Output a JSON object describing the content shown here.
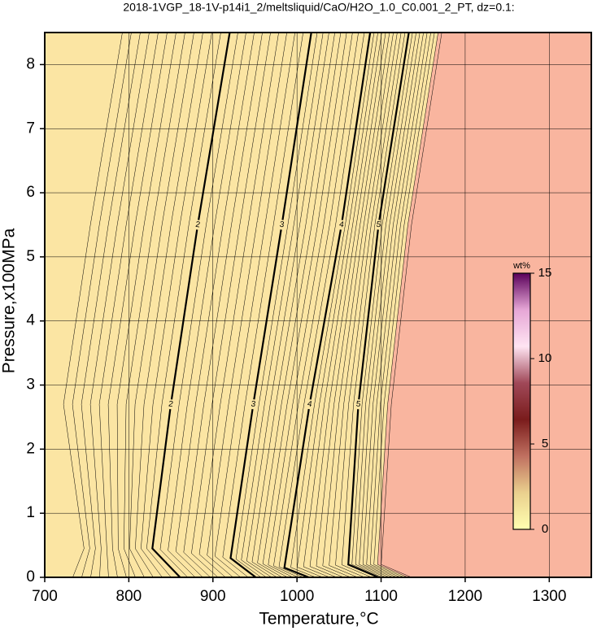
{
  "chart_data": {
    "type": "contour",
    "title": "2018-1VGP_18-1V-p14i1_2/meltsliquid/CaO/H2O_1.0_C0.001_2_PT, dz=0.1:",
    "x_label": "Temperature,°C",
    "y_label": "Pressure,x100MPa",
    "xlim": [
      700,
      1350
    ],
    "xticks": [
      700,
      800,
      900,
      1000,
      1100,
      1200,
      1300
    ],
    "ylim": [
      0,
      8.5
    ],
    "yticks": [
      0,
      1,
      2,
      3,
      4,
      5,
      6,
      7,
      8
    ],
    "grid": true,
    "fill_colors": [
      "#fbe5a3",
      "#f9b59f"
    ],
    "line_color": "#000000",
    "contours": [
      {
        "level": 2,
        "T": [
          861,
          828,
          850,
          882,
          920
        ],
        "P": [
          0,
          0.45,
          2.7,
          5.5,
          8.5
        ]
      },
      {
        "level": 3,
        "T": [
          951,
          921,
          948,
          982,
          1017
        ],
        "P": [
          0,
          0.3,
          2.7,
          5.5,
          8.5
        ]
      },
      {
        "level": 4,
        "T": [
          1014,
          985,
          1015,
          1053,
          1087
        ],
        "P": [
          0,
          0.15,
          2.7,
          5.5,
          8.5
        ]
      },
      {
        "level": 5,
        "T": [
          1097,
          1061,
          1073,
          1097,
          1133
        ],
        "P": [
          0,
          0.2,
          2.7,
          5.5,
          8.5
        ]
      }
    ],
    "colorbar": {
      "label": "wt%",
      "lim": [
        0,
        15
      ],
      "ticks": [
        0,
        5,
        10,
        15
      ],
      "colors": [
        "#ffffb0",
        "#ead08e",
        "#c07060",
        "#7a1c1c",
        "#a04858",
        "#ffe4f2",
        "#e6a6d6",
        "#5a005a"
      ]
    }
  }
}
